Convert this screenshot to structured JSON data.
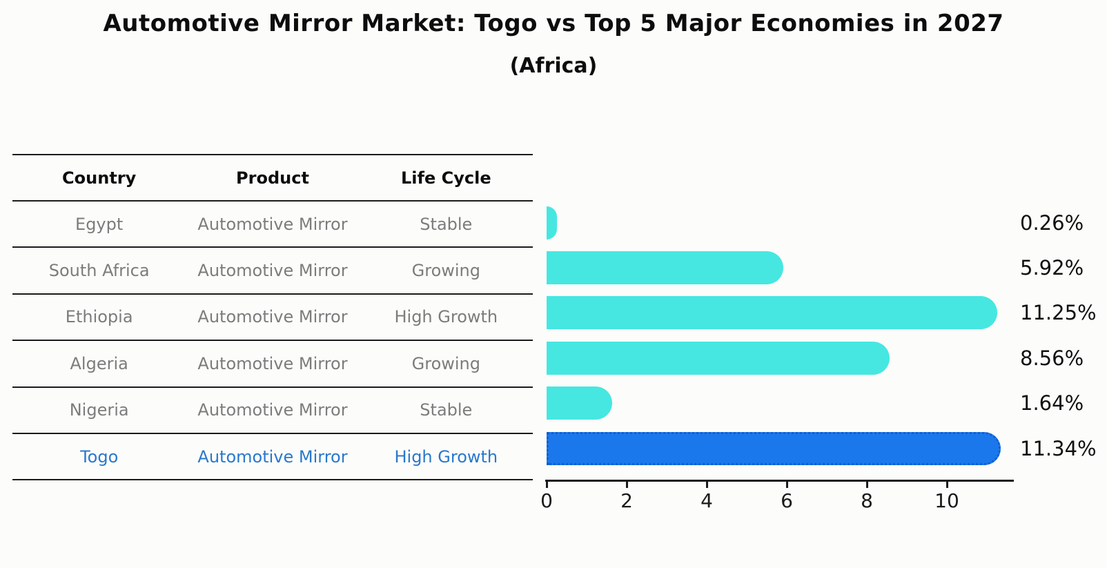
{
  "title": "Automotive Mirror Market: Togo vs Top 5 Major Economies in 2027",
  "subtitle": "(Africa)",
  "table": {
    "headers": [
      "Country",
      "Product",
      "Life Cycle"
    ],
    "rows": [
      {
        "country": "Egypt",
        "product": "Automotive Mirror",
        "life_cycle": "Stable",
        "value_label": "0.26%"
      },
      {
        "country": "South Africa",
        "product": "Automotive Mirror",
        "life_cycle": "Growing",
        "value_label": "5.92%"
      },
      {
        "country": "Ethiopia",
        "product": "Automotive Mirror",
        "life_cycle": "High Growth",
        "value_label": "11.25%"
      },
      {
        "country": "Algeria",
        "product": "Automotive Mirror",
        "life_cycle": "Growing",
        "value_label": "8.56%"
      },
      {
        "country": "Nigeria",
        "product": "Automotive Mirror",
        "life_cycle": "Stable",
        "value_label": "1.64%"
      },
      {
        "country": "Togo",
        "product": "Automotive Mirror",
        "life_cycle": "High Growth",
        "value_label": "11.34%"
      }
    ]
  },
  "chart_data": {
    "type": "bar",
    "orientation": "horizontal",
    "title": "Automotive Mirror Market: Togo vs Top 5 Major Economies in 2027 (Africa)",
    "categories": [
      "Egypt",
      "South Africa",
      "Ethiopia",
      "Algeria",
      "Nigeria",
      "Togo"
    ],
    "values": [
      0.26,
      5.92,
      11.25,
      8.56,
      1.64,
      11.34
    ],
    "labels": [
      "0.26%",
      "5.92%",
      "11.25%",
      "8.56%",
      "1.64%",
      "11.34%"
    ],
    "unit": "%",
    "xlim": [
      0,
      11.7
    ],
    "xticks": [
      0,
      2,
      4,
      6,
      8,
      10
    ],
    "grid": false,
    "legend": false,
    "highlight_index": 5,
    "bar_color": "#46e7e1",
    "highlight_color": "#1b78ec",
    "highlight_border_color": "#0d5fd0",
    "highlight_text_color": "#2878ce"
  }
}
